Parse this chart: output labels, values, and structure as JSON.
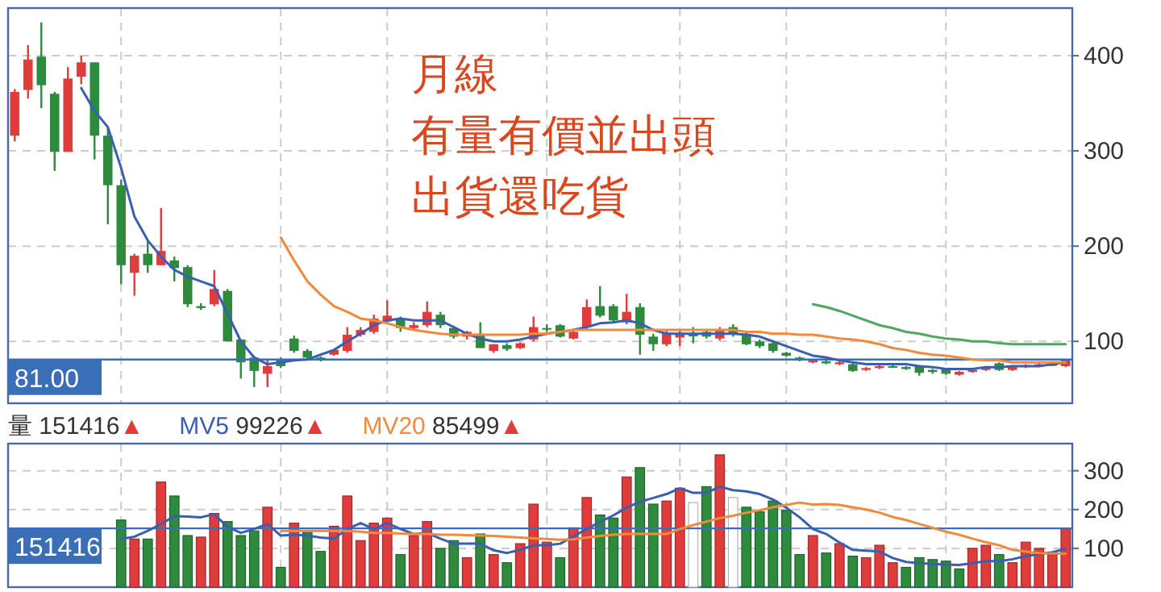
{
  "chart_data": [
    {
      "type": "candlestick",
      "grid": true,
      "ylim": [
        35,
        450
      ],
      "yticks": [
        100,
        200,
        300,
        400
      ],
      "categories": [
        null,
        null,
        null,
        null,
        null,
        null,
        null,
        null,
        null,
        null,
        null,
        null,
        null,
        null,
        null,
        null,
        null,
        null,
        null,
        null,
        null,
        null,
        null,
        null,
        null,
        null,
        null,
        null,
        null,
        null,
        null,
        null,
        null,
        null,
        null,
        null,
        null,
        null,
        null,
        null,
        null,
        null,
        null,
        null,
        null,
        null,
        null,
        null,
        null,
        null,
        null,
        null,
        null,
        null,
        null,
        null,
        null,
        null,
        null,
        null,
        null,
        null,
        null,
        null,
        null,
        null,
        null,
        null,
        null,
        null,
        null,
        null,
        null,
        null,
        null,
        null,
        null,
        null,
        null,
        null
      ],
      "ohlc": [
        [
          316,
          365,
          310,
          362
        ],
        [
          364,
          411,
          355,
          396
        ],
        [
          399,
          435,
          345,
          369
        ],
        [
          360,
          362,
          279,
          299
        ],
        [
          299,
          388,
          299,
          376
        ],
        [
          378,
          400,
          370,
          393
        ],
        [
          393,
          393,
          291,
          316
        ],
        [
          316,
          325,
          223,
          264
        ],
        [
          264,
          270,
          160,
          180
        ],
        [
          172,
          192,
          148,
          190
        ],
        [
          192,
          206,
          172,
          180
        ],
        [
          180,
          240,
          180,
          195
        ],
        [
          185,
          189,
          163,
          177
        ],
        [
          178,
          180,
          136,
          139
        ],
        [
          137,
          140,
          133,
          135
        ],
        [
          139,
          175,
          137,
          155
        ],
        [
          153,
          155,
          100,
          100
        ],
        [
          102,
          102,
          61,
          78
        ],
        [
          83,
          85,
          52,
          69
        ],
        [
          66,
          80,
          52,
          74
        ],
        [
          81,
          83,
          72,
          74
        ],
        [
          103,
          106,
          88,
          90
        ],
        [
          90,
          92,
          80,
          83
        ],
        [
          83,
          84,
          79,
          80
        ],
        [
          86,
          92,
          85,
          91
        ],
        [
          90,
          115,
          88,
          107
        ],
        [
          107,
          115,
          105,
          112
        ],
        [
          110,
          128,
          108,
          124
        ],
        [
          121,
          143,
          119,
          127
        ],
        [
          124,
          126,
          110,
          114
        ],
        [
          114,
          120,
          112,
          117
        ],
        [
          117,
          142,
          115,
          131
        ],
        [
          128,
          131,
          114,
          117
        ],
        [
          114,
          116,
          103,
          105
        ],
        [
          105,
          111,
          102,
          110
        ],
        [
          108,
          120,
          93,
          93
        ],
        [
          90,
          97,
          88,
          97
        ],
        [
          96,
          98,
          90,
          92
        ],
        [
          93,
          99,
          92,
          98
        ],
        [
          102,
          126,
          100,
          115
        ],
        [
          114,
          118,
          110,
          113
        ],
        [
          117,
          118,
          104,
          105
        ],
        [
          103,
          112,
          102,
          110
        ],
        [
          115,
          144,
          113,
          136
        ],
        [
          137,
          158,
          125,
          127
        ],
        [
          137,
          139,
          120,
          122
        ],
        [
          120,
          150,
          118,
          131
        ],
        [
          136,
          140,
          86,
          107
        ],
        [
          105,
          108,
          90,
          97
        ],
        [
          97,
          112,
          95,
          109
        ],
        [
          104,
          112,
          95,
          109
        ],
        [
          107,
          115,
          98,
          106
        ],
        [
          110,
          112,
          103,
          105
        ],
        [
          103,
          115,
          101,
          112
        ],
        [
          115,
          118,
          105,
          107
        ],
        [
          108,
          110,
          96,
          97
        ],
        [
          100,
          102,
          93,
          95
        ],
        [
          98,
          100,
          88,
          90
        ],
        [
          88,
          89,
          84,
          85
        ],
        [
          83,
          84,
          79,
          80
        ],
        [
          78,
          81,
          77,
          80
        ],
        [
          79,
          80,
          76,
          77
        ],
        [
          76,
          79,
          75,
          78
        ],
        [
          76,
          77,
          68,
          69
        ],
        [
          70,
          73,
          69,
          72
        ],
        [
          72,
          75,
          71,
          74
        ],
        [
          74,
          76,
          72,
          73
        ],
        [
          73,
          74,
          70,
          71
        ],
        [
          74,
          75,
          64,
          67
        ],
        [
          70,
          71,
          66,
          68
        ],
        [
          71,
          72,
          65,
          66
        ],
        [
          65,
          69,
          64,
          68
        ],
        [
          68,
          71,
          67,
          70
        ],
        [
          70,
          73,
          69,
          72
        ],
        [
          77,
          78,
          69,
          70
        ],
        [
          70,
          75,
          69,
          73
        ],
        [
          73,
          76,
          72,
          75
        ],
        [
          74,
          78,
          73,
          76
        ],
        [
          76,
          77,
          74,
          75
        ],
        [
          74,
          81,
          73,
          81
        ]
      ],
      "colors": [
        "#e03c3c",
        "#e03c3c",
        "#2e8b3e",
        "#2e8b3e",
        "#e03c3c",
        "#e03c3c",
        "#2e8b3e",
        "#2e8b3e",
        "#2e8b3e",
        "#e03c3c",
        "#2e8b3e",
        "#e03c3c",
        "#2e8b3e",
        "#2e8b3e",
        "#2e8b3e",
        "#e03c3c",
        "#2e8b3e",
        "#2e8b3e",
        "#2e8b3e",
        "#e03c3c",
        "#2e8b3e",
        "#2e8b3e",
        "#2e8b3e",
        "#2e8b3e",
        "#e03c3c",
        "#e03c3c",
        "#e03c3c",
        "#e03c3c",
        "#e03c3c",
        "#2e8b3e",
        "#e03c3c",
        "#e03c3c",
        "#2e8b3e",
        "#2e8b3e",
        "#e03c3c",
        "#2e8b3e",
        "#e03c3c",
        "#2e8b3e",
        "#e03c3c",
        "#e03c3c",
        "#2e8b3e",
        "#2e8b3e",
        "#e03c3c",
        "#e03c3c",
        "#2e8b3e",
        "#2e8b3e",
        "#e03c3c",
        "#2e8b3e",
        "#2e8b3e",
        "#e03c3c",
        "#e03c3c",
        "#2e8b3e",
        "#2e8b3e",
        "#e03c3c",
        "#2e8b3e",
        "#2e8b3e",
        "#2e8b3e",
        "#2e8b3e",
        "#2e8b3e",
        "#2e8b3e",
        "#e03c3c",
        "#2e8b3e",
        "#e03c3c",
        "#2e8b3e",
        "#e03c3c",
        "#e03c3c",
        "#2e8b3e",
        "#2e8b3e",
        "#2e8b3e",
        "#2e8b3e",
        "#2e8b3e",
        "#e03c3c",
        "#e03c3c",
        "#e03c3c",
        "#2e8b3e",
        "#e03c3c",
        "#e03c3c",
        "#e03c3c",
        "#2e8b3e",
        "#e03c3c"
      ],
      "series": [
        {
          "type": "line",
          "color": "#3a5fb0",
          "values": [
            null,
            null,
            null,
            null,
            null,
            366,
            342,
            325,
            282,
            231,
            206,
            189,
            175,
            168,
            163,
            158,
            129,
            100,
            83,
            76,
            78,
            80,
            81,
            86,
            91,
            100,
            108,
            117,
            122,
            124,
            122,
            122,
            122,
            115,
            108,
            103,
            100,
            100,
            102,
            105,
            108,
            110,
            112,
            115,
            119,
            120,
            122,
            119,
            112,
            108,
            108,
            108,
            108,
            108,
            108,
            107,
            105,
            100,
            95,
            90,
            85,
            83,
            80,
            78,
            76,
            76,
            76,
            76,
            74,
            73,
            71,
            71,
            71,
            73,
            73,
            74,
            74,
            74,
            76,
            78
          ]
        },
        {
          "type": "line",
          "color": "#f08a3c",
          "values": [
            null,
            null,
            null,
            null,
            null,
            null,
            null,
            null,
            null,
            null,
            null,
            null,
            null,
            null,
            null,
            null,
            null,
            null,
            null,
            null,
            209,
            185,
            163,
            149,
            137,
            131,
            124,
            122,
            119,
            115,
            112,
            110,
            108,
            107,
            107,
            107,
            107,
            107,
            107,
            108,
            108,
            110,
            112,
            112,
            112,
            112,
            112,
            112,
            112,
            112,
            112,
            112,
            112,
            112,
            112,
            110,
            110,
            108,
            108,
            107,
            107,
            105,
            103,
            102,
            100,
            97,
            93,
            91,
            88,
            86,
            85,
            83,
            81,
            80,
            80,
            78,
            78,
            78,
            78,
            78
          ]
        },
        {
          "type": "line",
          "color": "#4fa860",
          "values": [
            null,
            null,
            null,
            null,
            null,
            null,
            null,
            null,
            null,
            null,
            null,
            null,
            null,
            null,
            null,
            null,
            null,
            null,
            null,
            null,
            null,
            null,
            null,
            null,
            null,
            null,
            null,
            null,
            null,
            null,
            null,
            null,
            null,
            null,
            null,
            null,
            null,
            null,
            null,
            null,
            null,
            null,
            null,
            null,
            null,
            null,
            null,
            null,
            null,
            null,
            null,
            null,
            null,
            null,
            null,
            null,
            null,
            null,
            null,
            null,
            139,
            136,
            132,
            127,
            122,
            117,
            114,
            110,
            108,
            105,
            103,
            102,
            100,
            100,
            98,
            97,
            97,
            97,
            97,
            97
          ]
        }
      ],
      "ref_lines": [
        {
          "axis": "y",
          "value": 81,
          "label": "81.00",
          "color": "#3a6fb8"
        }
      ],
      "annotations": [
        "月線",
        "有量有價並出頭",
        "出貨還吃貨"
      ]
    },
    {
      "type": "bar",
      "grid": true,
      "legend": "top left",
      "legend_title": "量",
      "ylim": [
        0,
        370
      ],
      "yticks": [
        100,
        200,
        300
      ],
      "categories": [
        null,
        null,
        null,
        null,
        null,
        null,
        null,
        null,
        null,
        null,
        null,
        null,
        null,
        null,
        null,
        null,
        null,
        null,
        null,
        null,
        null,
        null,
        null,
        null,
        null,
        null,
        null,
        null,
        null,
        null,
        null,
        null,
        null,
        null,
        null,
        null,
        null,
        null,
        null,
        null,
        null,
        null,
        null,
        null,
        null,
        null,
        null,
        null,
        null,
        null,
        null,
        null,
        null,
        null,
        null,
        null,
        null,
        null,
        null,
        null,
        null,
        null,
        null,
        null,
        null,
        null,
        null,
        null,
        null,
        null,
        null,
        null,
        null,
        null,
        null,
        null,
        null,
        null,
        null,
        null
      ],
      "series": [
        {
          "type": "bar",
          "colors": [
            null,
            null,
            null,
            null,
            null,
            null,
            null,
            null,
            "#2e8b3e",
            "#e03c3c",
            "#2e8b3e",
            "#e03c3c",
            "#2e8b3e",
            "#2e8b3e",
            "#e03c3c",
            "#e03c3c",
            "#2e8b3e",
            "#2e8b3e",
            "#2e8b3e",
            "#e03c3c",
            "#2e8b3e",
            "#e03c3c",
            "#2e8b3e",
            "#2e8b3e",
            "#e03c3c",
            "#e03c3c",
            "#e03c3c",
            "#e03c3c",
            "#e03c3c",
            "#2e8b3e",
            "#e03c3c",
            "#e03c3c",
            "#2e8b3e",
            "#2e8b3e",
            "#e03c3c",
            "#2e8b3e",
            "#e03c3c",
            "#2e8b3e",
            "#e03c3c",
            "#e03c3c",
            "#e03c3c",
            "#2e8b3e",
            "#e03c3c",
            "#e03c3c",
            "#2e8b3e",
            "#2e8b3e",
            "#e03c3c",
            "#2e8b3e",
            "#2e8b3e",
            "#e03c3c",
            "#e03c3c",
            "#ffffff",
            "#2e8b3e",
            "#e03c3c",
            "#ffffff",
            "#2e8b3e",
            "#2e8b3e",
            "#2e8b3e",
            "#2e8b3e",
            "#2e8b3e",
            "#e03c3c",
            "#2e8b3e",
            "#e03c3c",
            "#2e8b3e",
            "#e03c3c",
            "#e03c3c",
            "#e03c3c",
            "#2e8b3e",
            "#2e8b3e",
            "#2e8b3e",
            "#2e8b3e",
            "#2e8b3e",
            "#e03c3c",
            "#e03c3c",
            "#2e8b3e",
            "#e03c3c",
            "#e03c3c",
            "#e03c3c",
            "#e03c3c",
            "#e03c3c"
          ],
          "values": [
            null,
            null,
            null,
            null,
            null,
            null,
            null,
            null,
            173,
            124,
            124,
            271,
            235,
            133,
            129,
            190,
            169,
            133,
            145,
            206,
            51,
            165,
            141,
            92,
            157,
            235,
            120,
            165,
            178,
            84,
            133,
            169,
            100,
            120,
            76,
            137,
            84,
            63,
            112,
            214,
            116,
            76,
            153,
            231,
            186,
            178,
            284,
            308,
            214,
            222,
            255,
            218,
            259,
            341,
            231,
            206,
            194,
            222,
            198,
            84,
            133,
            88,
            112,
            80,
            76,
            108,
            63,
            51,
            76,
            71,
            67,
            47,
            100,
            108,
            84,
            63,
            116,
            100,
            84,
            151
          ]
        },
        {
          "name": "MV5",
          "type": "line",
          "color": "#3a5fb0",
          "values": [
            null,
            null,
            null,
            null,
            null,
            null,
            null,
            null,
            124,
            130,
            145,
            163,
            183,
            182,
            180,
            188,
            155,
            140,
            150,
            163,
            133,
            135,
            133,
            128,
            125,
            150,
            165,
            150,
            165,
            150,
            137,
            140,
            125,
            112,
            112,
            112,
            95,
            88,
            96,
            108,
            108,
            112,
            131,
            150,
            168,
            185,
            205,
            220,
            230,
            240,
            255,
            243,
            243,
            259,
            250,
            247,
            240,
            226,
            205,
            180,
            150,
            137,
            115,
            96,
            94,
            92,
            75,
            65,
            62,
            60,
            58,
            57,
            62,
            67,
            67,
            72,
            80,
            85,
            90,
            99
          ]
        },
        {
          "name": "MV20",
          "type": "line",
          "color": "#f08a3c",
          "values": [
            null,
            null,
            null,
            null,
            null,
            null,
            null,
            null,
            null,
            null,
            null,
            null,
            null,
            null,
            null,
            null,
            null,
            null,
            null,
            null,
            145,
            145,
            145,
            145,
            145,
            145,
            143,
            140,
            140,
            138,
            137,
            137,
            135,
            135,
            134,
            133,
            132,
            130,
            128,
            126,
            124,
            122,
            123,
            128,
            132,
            135,
            137,
            137,
            137,
            137,
            150,
            160,
            169,
            178,
            184,
            192,
            198,
            206,
            212,
            218,
            213,
            214,
            212,
            206,
            200,
            192,
            181,
            173,
            163,
            153,
            143,
            135,
            125,
            116,
            108,
            96,
            92,
            88,
            87,
            86
          ]
        }
      ],
      "ref_lines": [
        {
          "axis": "y",
          "value": 151.416,
          "label": "151416",
          "color": "#3a6fb8"
        }
      ],
      "annotations": [
        "151416▲",
        "99226▲",
        "85499▲"
      ]
    }
  ]
}
